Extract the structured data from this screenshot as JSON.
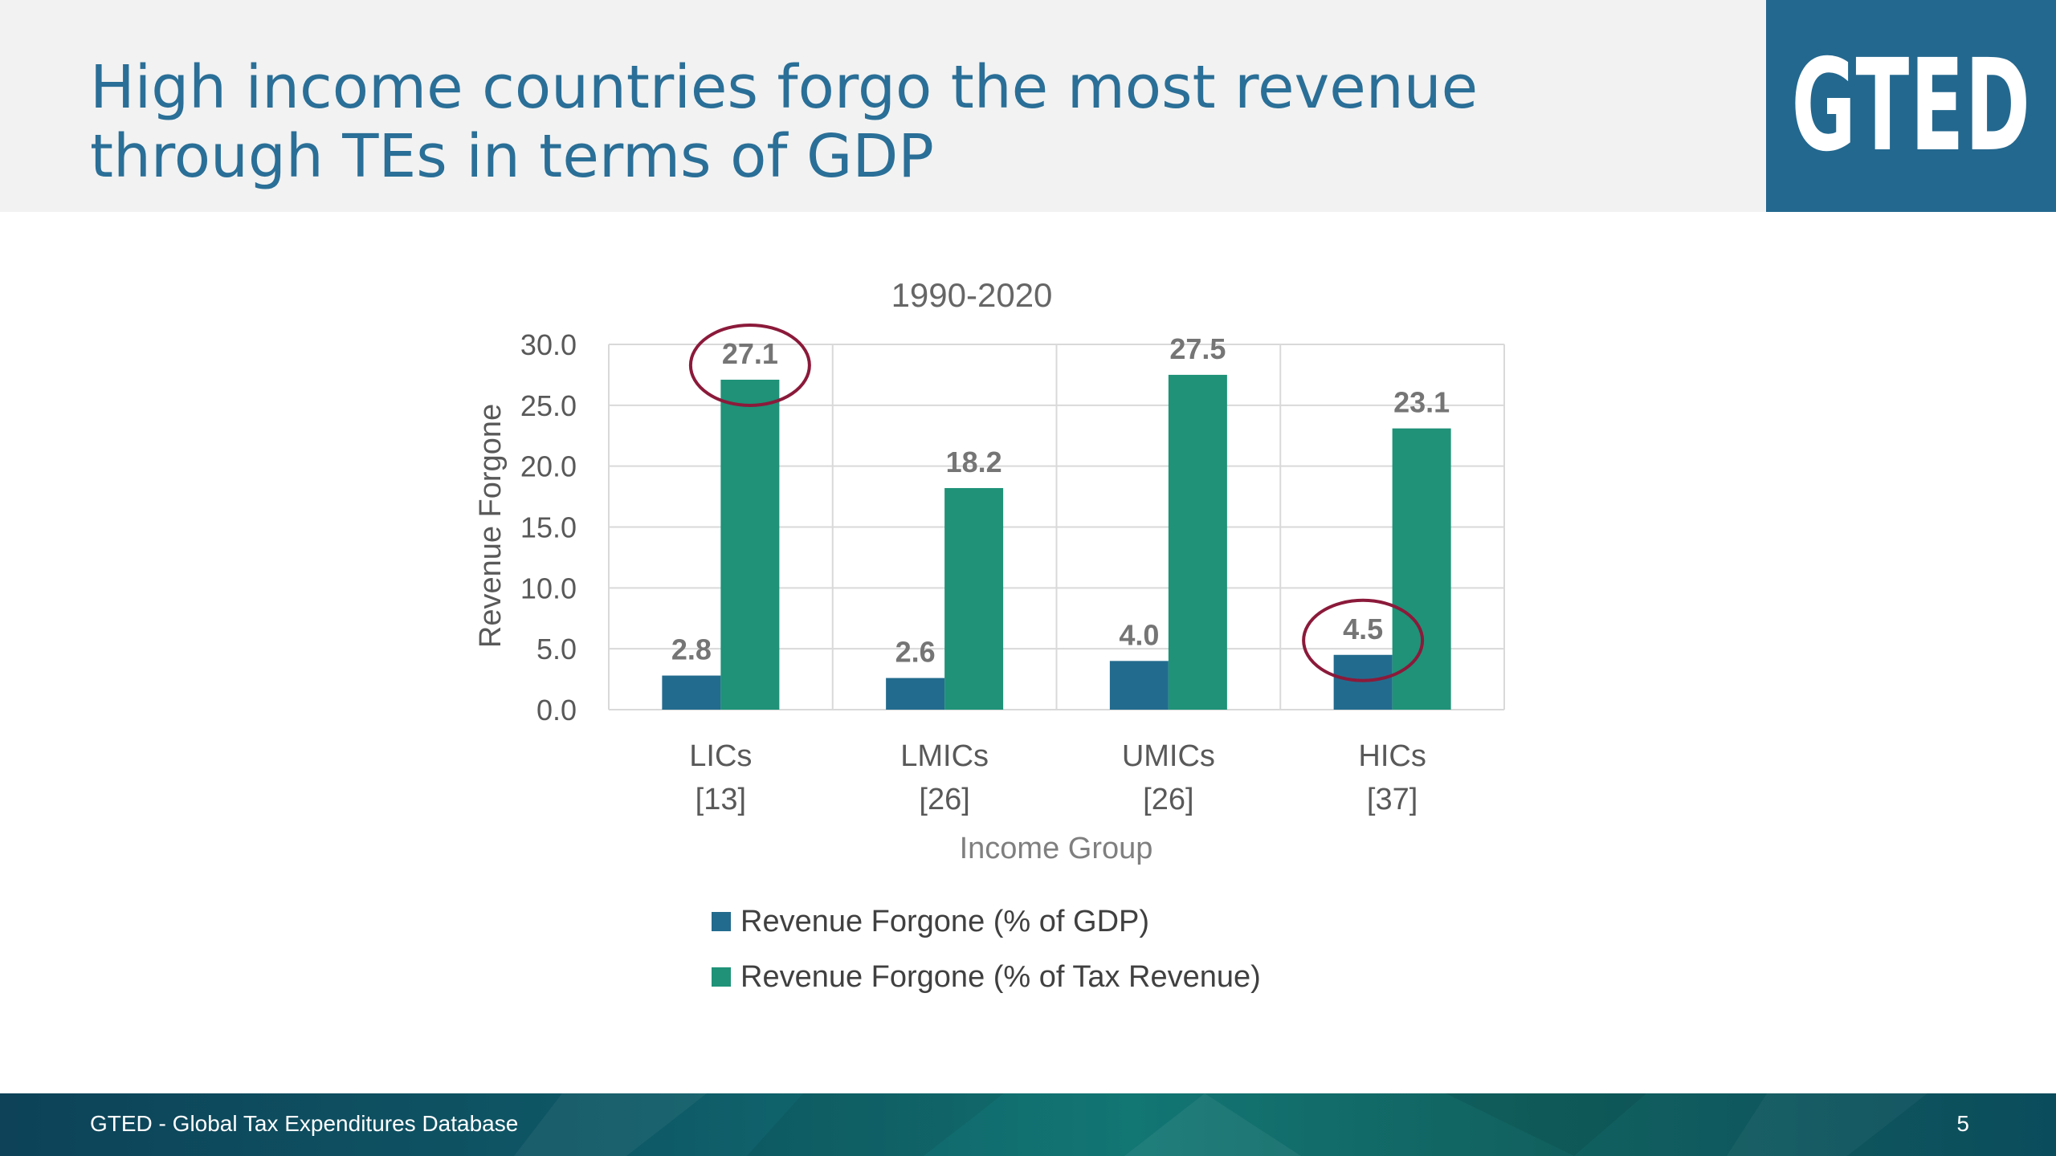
{
  "slide": {
    "title_line1": "High income countries forgo the most revenue",
    "title_line2": "through TEs in terms of GDP",
    "logo": "GTED",
    "footer_text": "GTED - Global Tax Expenditures Database",
    "page_number": "5"
  },
  "colors": {
    "title": "#2a6f97",
    "series_gdp": "#236b8e",
    "series_tax": "#1f9278",
    "highlight_circle": "#8b1a3a",
    "logo_bg": "#23688f"
  },
  "chart_data": {
    "type": "bar",
    "title": "1990-2020",
    "xlabel": "Income Group",
    "ylabel": "Revenue Forgone",
    "ylim": [
      0,
      30
    ],
    "yticks": [
      "0.0",
      "5.0",
      "10.0",
      "15.0",
      "20.0",
      "25.0",
      "30.0"
    ],
    "grid": true,
    "legend_position": "bottom",
    "categories": [
      {
        "name": "LICs",
        "count": "[13]"
      },
      {
        "name": "LMICs",
        "count": "[26]"
      },
      {
        "name": "UMICs",
        "count": "[26]"
      },
      {
        "name": "HICs",
        "count": "[37]"
      }
    ],
    "series": [
      {
        "name": "Revenue Forgone (% of GDP)",
        "values": [
          2.8,
          2.6,
          4.0,
          4.5
        ],
        "labels": [
          "2.8",
          "2.6",
          "4.0",
          "4.5"
        ]
      },
      {
        "name": "Revenue Forgone (% of Tax Revenue)",
        "values": [
          27.1,
          18.2,
          27.5,
          23.1
        ],
        "labels": [
          "27.1",
          "18.2",
          "27.5",
          "23.1"
        ]
      }
    ],
    "highlights": [
      {
        "series": 1,
        "category": 0
      },
      {
        "series": 0,
        "category": 3
      }
    ]
  }
}
